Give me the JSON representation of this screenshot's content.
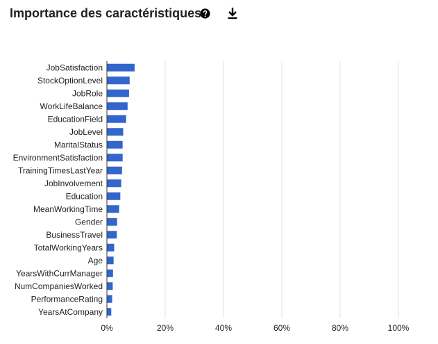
{
  "header": {
    "title": "Importance des caractéristiques",
    "help_icon": "help-circle-icon",
    "download_icon": "download-icon"
  },
  "colors": {
    "bar": "#3366cc",
    "grid": "#e0e0e0",
    "axis": "#333333",
    "text": "#222222"
  },
  "chart_data": {
    "type": "bar",
    "orientation": "horizontal",
    "title": "",
    "xlabel": "",
    "ylabel": "",
    "xlim": [
      0,
      100
    ],
    "x_ticks": [
      0,
      20,
      40,
      60,
      80,
      100
    ],
    "x_tick_labels": [
      "0%",
      "20%",
      "40%",
      "60%",
      "80%",
      "100%"
    ],
    "grid": true,
    "legend": "none",
    "categories": [
      "JobSatisfaction",
      "StockOptionLevel",
      "JobRole",
      "WorkLifeBalance",
      "EducationField",
      "JobLevel",
      "MaritalStatus",
      "EnvironmentSatisfaction",
      "TrainingTimesLastYear",
      "JobInvolvement",
      "Education",
      "MeanWorkingTime",
      "Gender",
      "BusinessTravel",
      "TotalWorkingYears",
      "Age",
      "YearsWithCurrManager",
      "NumCompaniesWorked",
      "PerformanceRating",
      "YearsAtCompany"
    ],
    "values": [
      9.5,
      7.8,
      7.6,
      7.1,
      6.6,
      5.6,
      5.4,
      5.4,
      5.2,
      4.9,
      4.6,
      4.2,
      3.5,
      3.4,
      2.5,
      2.3,
      2.1,
      2.0,
      1.8,
      1.5
    ]
  }
}
